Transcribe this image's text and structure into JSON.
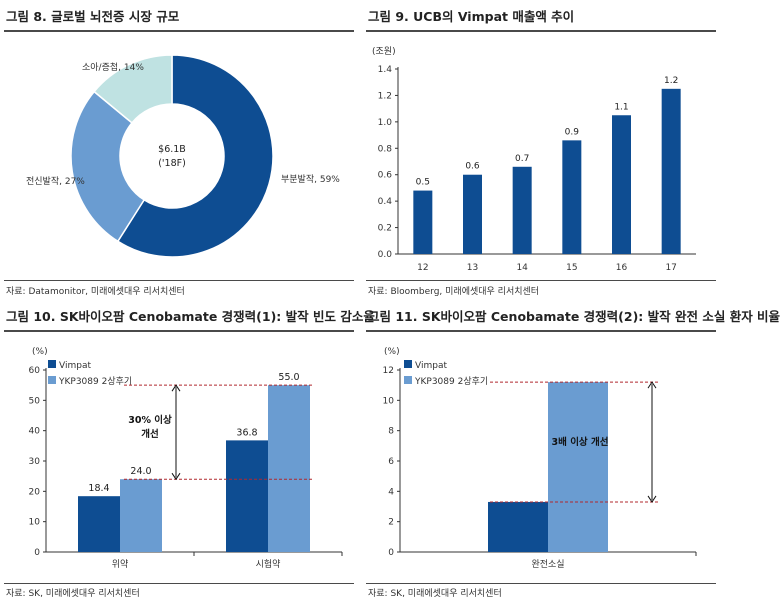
{
  "chart_data": [
    {
      "id": "p1",
      "type": "pie",
      "title": "그림 8. 글로벌 뇌전증 시장 규모",
      "center_label_1": "$6.1B",
      "center_label_2": "('18F)",
      "slices": [
        {
          "label": "부분발작, 59%",
          "value": 59,
          "color": "#0e4d92"
        },
        {
          "label": "전신발작, 27%",
          "value": 27,
          "color": "#6a9cd1"
        },
        {
          "label": "소아/증첩, 14%",
          "value": 14,
          "color": "#bfe2e2"
        }
      ],
      "source": "자료: Datamonitor, 미래에셋대우 리서치센터"
    },
    {
      "id": "p2",
      "type": "bar",
      "title": "그림 9. UCB의 Vimpat 매출액 추이",
      "unit": "(조원)",
      "categories": [
        "12",
        "13",
        "14",
        "15",
        "16",
        "17"
      ],
      "values": [
        0.5,
        0.6,
        0.7,
        0.9,
        1.1,
        1.2
      ],
      "bar_heights": [
        0.48,
        0.6,
        0.66,
        0.86,
        1.05,
        1.25
      ],
      "ylim": [
        0,
        1.4
      ],
      "yticks": [
        "0.0",
        "0.2",
        "0.4",
        "0.6",
        "0.8",
        "1.0",
        "1.2",
        "1.4"
      ],
      "color": "#0e4d92",
      "source": "자료: Bloomberg, 미래에셋대우 리서치센터"
    },
    {
      "id": "p3",
      "type": "bar",
      "title": "그림 10. SK바이오팜 Cenobamate 경쟁력(1): 발작 빈도 감소율",
      "unit": "(%)",
      "categories": [
        "위약",
        "시험약"
      ],
      "series": [
        {
          "name": "Vimpat",
          "values": [
            18.4,
            36.8
          ],
          "color": "#0e4d92"
        },
        {
          "name": "YKP3089 2상후기",
          "values": [
            24.0,
            55.0
          ],
          "color": "#6a9cd1"
        }
      ],
      "value_labels": [
        [
          "18.4",
          "36.8"
        ],
        [
          "24.0",
          "55.0"
        ]
      ],
      "ylim": [
        0,
        60
      ],
      "yticks": [
        "0",
        "10",
        "20",
        "30",
        "40",
        "50",
        "60"
      ],
      "annotation_1": "30% 이상",
      "annotation_2": "개선",
      "source": "자료: SK, 미래에셋대우 리서치센터"
    },
    {
      "id": "p4",
      "type": "bar",
      "title": "그림 11. SK바이오팜 Cenobamate 경쟁력(2): 발작 완전 소실 환자 비율",
      "unit": "(%)",
      "categories": [
        "완전소실"
      ],
      "series": [
        {
          "name": "Vimpat",
          "values": [
            3.3
          ],
          "color": "#0e4d92"
        },
        {
          "name": "YKP3089 2상후기",
          "values": [
            11.2
          ],
          "color": "#6a9cd1"
        }
      ],
      "ylim": [
        0,
        12
      ],
      "yticks": [
        "0",
        "2",
        "4",
        "6",
        "8",
        "10",
        "12"
      ],
      "annotation_1": "3배 이상 개선",
      "source": "자료: SK, 미래에셋대우 리서치센터"
    }
  ]
}
